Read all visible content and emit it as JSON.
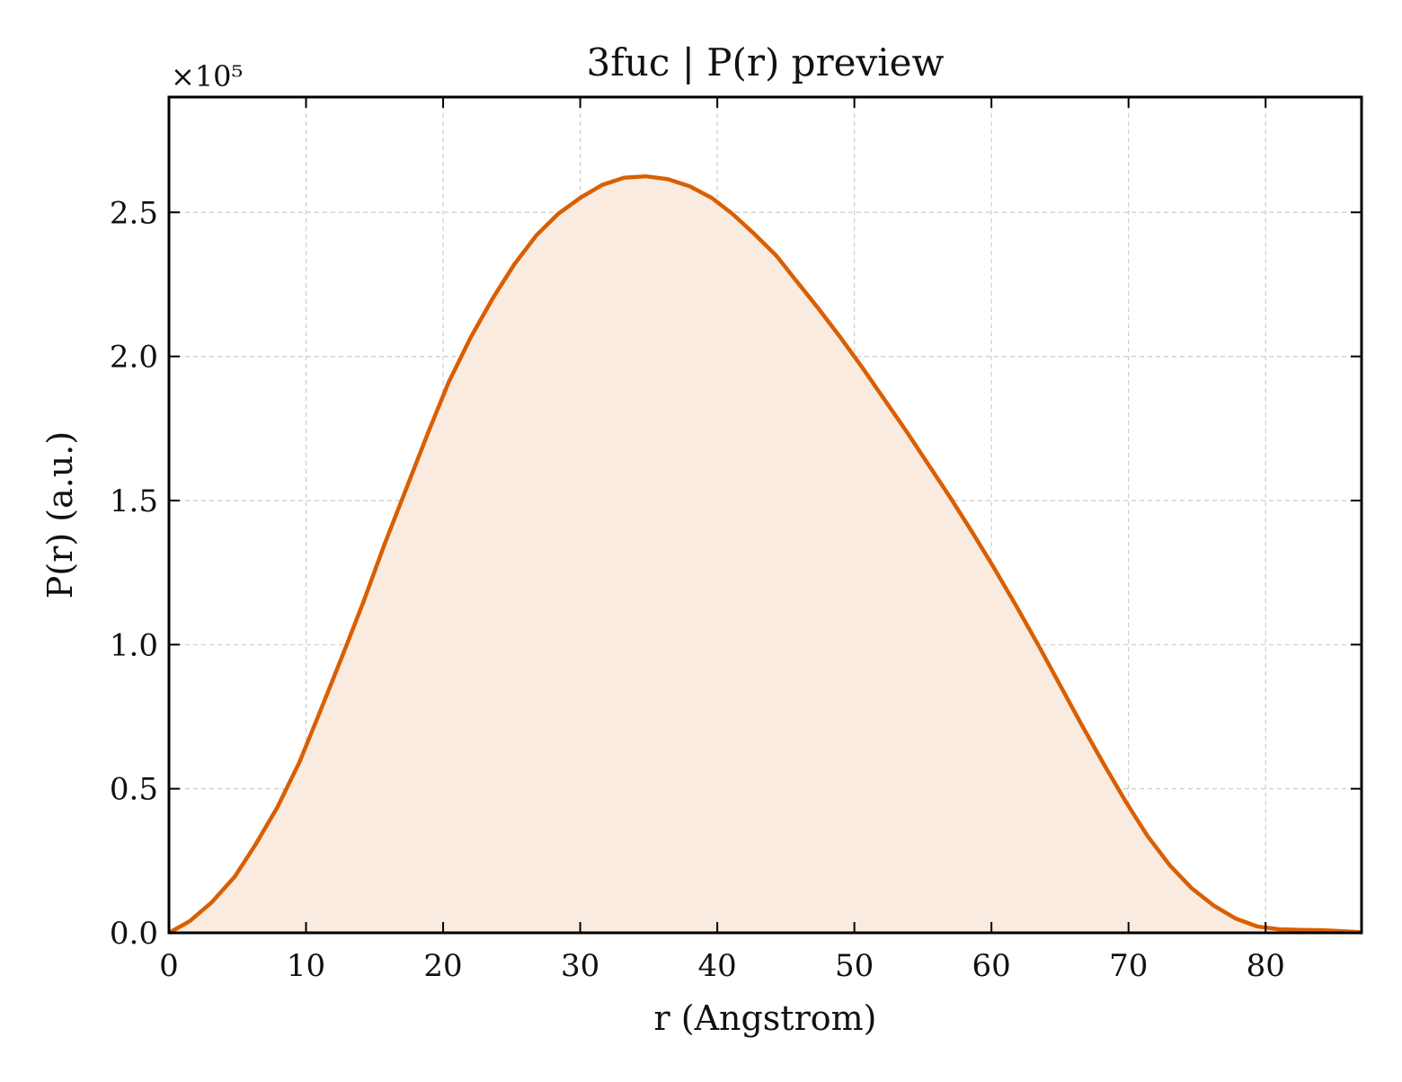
{
  "chart_data": {
    "type": "area",
    "title": "3fuc | P(r) preview",
    "xlabel": "r (Angstrom)",
    "ylabel": "P(r) (a.u.)",
    "y_offset_label": "×10⁵",
    "y_scale": 100000,
    "xlim": [
      0,
      87
    ],
    "ylim": [
      0,
      290000
    ],
    "x_ticks": [
      0,
      10,
      20,
      30,
      40,
      50,
      60,
      70,
      80
    ],
    "x_tick_labels": [
      "0",
      "10",
      "20",
      "30",
      "40",
      "50",
      "60",
      "70",
      "80"
    ],
    "y_ticks": [
      0,
      50000,
      100000,
      150000,
      200000,
      250000
    ],
    "y_tick_labels": [
      "0.0",
      "0.5",
      "1.0",
      "1.5",
      "2.0",
      "2.5"
    ],
    "grid": true,
    "series": [
      {
        "x": [
          0,
          1.5,
          3.1,
          4.8,
          6.3,
          7.9,
          9.5,
          11.0,
          12.6,
          14.2,
          15.7,
          17.3,
          18.9,
          20.4,
          22.0,
          23.6,
          25.2,
          26.8,
          28.4,
          30.0,
          31.6,
          33.2,
          34.8,
          36.4,
          38.0,
          39.6,
          41.1,
          42.7,
          44.3,
          45.8,
          47.4,
          49.0,
          50.6,
          52.2,
          53.8,
          55.4,
          57.0,
          58.6,
          60.2,
          61.8,
          63.4,
          65.0,
          66.6,
          68.2,
          69.8,
          71.4,
          73.0,
          74.6,
          76.2,
          77.8,
          79.4,
          81.0,
          82.6,
          84.2,
          85.8,
          87.0
        ],
        "y": [
          0,
          4000,
          10500,
          19500,
          30500,
          43500,
          59000,
          76500,
          95500,
          115000,
          134500,
          154000,
          173500,
          191000,
          206500,
          220000,
          232000,
          242000,
          249500,
          255000,
          259500,
          262000,
          262500,
          261500,
          259000,
          255000,
          249500,
          242500,
          235000,
          226000,
          216500,
          206500,
          196000,
          185000,
          174000,
          162500,
          151000,
          139000,
          126500,
          113500,
          100000,
          86000,
          72000,
          58500,
          45500,
          33500,
          23500,
          15500,
          9500,
          5000,
          2200,
          1200,
          1000,
          900,
          500,
          200
        ]
      }
    ],
    "colors": {
      "line": "#d95f02",
      "fill": "#f9ebe0",
      "grid": "#cccccc",
      "axis": "#000000"
    }
  }
}
